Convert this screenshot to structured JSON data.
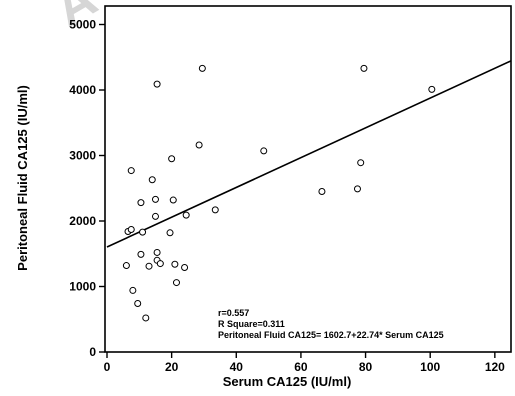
{
  "watermark_text": "A",
  "chart_data": {
    "type": "scatter",
    "title": "",
    "xlabel": "Serum CA125 (IU/ml)",
    "ylabel": "Peritoneal Fluid CA125 (IU/ml)",
    "xlim": [
      0,
      125
    ],
    "ylim": [
      0,
      5200
    ],
    "xticks": [
      0,
      20,
      40,
      60,
      80,
      100,
      120
    ],
    "yticks": [
      0,
      1000,
      2000,
      3000,
      4000,
      5000
    ],
    "xtick_labels": [
      "0",
      "20",
      "40",
      "60",
      "80",
      "100",
      "120"
    ],
    "ytick_labels": [
      "0",
      "1000",
      "2000",
      "3000",
      "4000",
      "5000"
    ],
    "grid": false,
    "legend": "none",
    "marker": "open-circle",
    "points": [
      {
        "x": 6,
        "y": 1320
      },
      {
        "x": 6.5,
        "y": 1840
      },
      {
        "x": 7.5,
        "y": 1870
      },
      {
        "x": 7.5,
        "y": 2770
      },
      {
        "x": 8,
        "y": 940
      },
      {
        "x": 9.5,
        "y": 740
      },
      {
        "x": 10.5,
        "y": 1490
      },
      {
        "x": 10.5,
        "y": 2280
      },
      {
        "x": 11,
        "y": 1830
      },
      {
        "x": 12,
        "y": 520
      },
      {
        "x": 13,
        "y": 1310
      },
      {
        "x": 14,
        "y": 2630
      },
      {
        "x": 15,
        "y": 2330
      },
      {
        "x": 15,
        "y": 2070
      },
      {
        "x": 15.5,
        "y": 1400
      },
      {
        "x": 15.5,
        "y": 1520
      },
      {
        "x": 15.5,
        "y": 4090
      },
      {
        "x": 16.5,
        "y": 1350
      },
      {
        "x": 19.5,
        "y": 1820
      },
      {
        "x": 20,
        "y": 2950
      },
      {
        "x": 20.5,
        "y": 2320
      },
      {
        "x": 21,
        "y": 1340
      },
      {
        "x": 21.5,
        "y": 1060
      },
      {
        "x": 24,
        "y": 1290
      },
      {
        "x": 24.5,
        "y": 2090
      },
      {
        "x": 28.5,
        "y": 3160
      },
      {
        "x": 29.5,
        "y": 4330
      },
      {
        "x": 33.5,
        "y": 2170
      },
      {
        "x": 48.5,
        "y": 3070
      },
      {
        "x": 66.5,
        "y": 2450
      },
      {
        "x": 77.5,
        "y": 2490
      },
      {
        "x": 78.5,
        "y": 2890
      },
      {
        "x": 79.5,
        "y": 4330
      },
      {
        "x": 100.5,
        "y": 4010
      }
    ],
    "regression": {
      "intercept": 1602.7,
      "slope": 22.74,
      "x_range": [
        0,
        125
      ]
    },
    "annotations": [
      "r=0.557",
      "R Square=0.311",
      "Peritoneal Fluid CA125= 1602.7+22.74* Serum CA125"
    ]
  }
}
